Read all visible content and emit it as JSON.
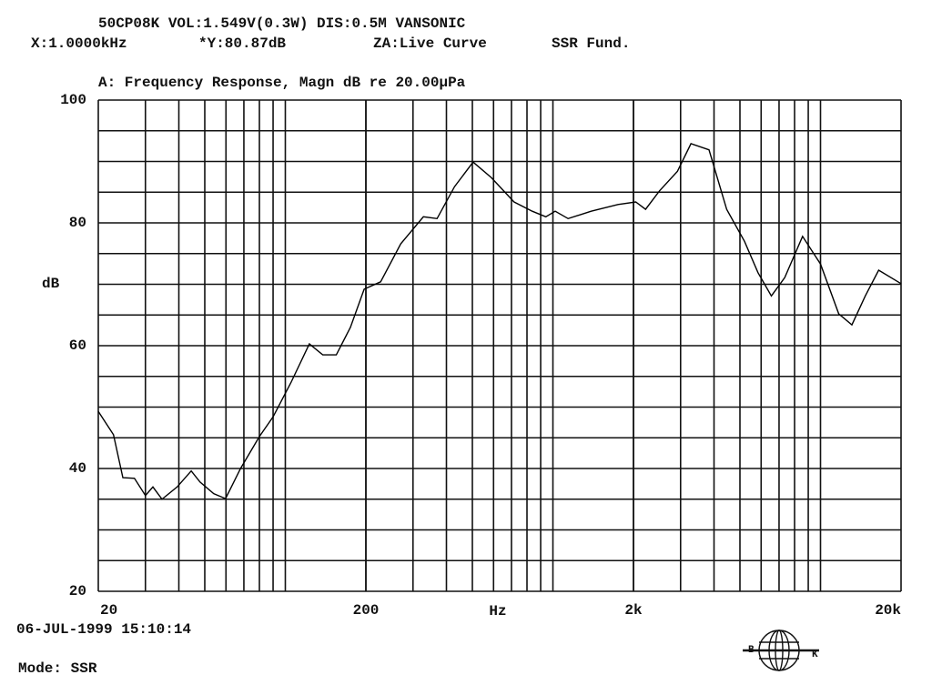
{
  "header": {
    "line1": "50CP08K VOL:1.549V(0.3W) DIS:0.5M VANSONIC",
    "cursor_x": "X:1.0000kHz",
    "cursor_y": "*Y:80.87dB",
    "za": "ZA:Live Curve",
    "mode_tag": "SSR Fund."
  },
  "chart_data": {
    "type": "line",
    "title": "A: Frequency Response, Magn dB re 20.00µPa",
    "y_label": "dB",
    "x_label": "Hz",
    "x": [
      20,
      22.8,
      24.7,
      27.3,
      30,
      32,
      34.6,
      39.4,
      44.5,
      48,
      54,
      59.8,
      68,
      80,
      90,
      105,
      123,
      138,
      155,
      175,
      197,
      227,
      270,
      328,
      369,
      429,
      503,
      588,
      716,
      837,
      941,
      1020,
      1140,
      1390,
      1750,
      2040,
      2220,
      2500,
      2920,
      3280,
      3830,
      4460,
      5200,
      5840,
      6550,
      7350,
      8570,
      10000,
      11700,
      13100,
      14700,
      16500,
      20000
    ],
    "series": [
      {
        "color": "#000000",
        "values": [
          49.3,
          45.5,
          38.5,
          38.4,
          35.6,
          37,
          35,
          37,
          39.6,
          37.8,
          35.9,
          35.1,
          40,
          45.2,
          48.4,
          54,
          60.3,
          58.5,
          58.5,
          63,
          69.2,
          70.4,
          76.6,
          81,
          80.7,
          85.9,
          89.9,
          87.4,
          83.4,
          81.9,
          81,
          81.9,
          80.7,
          81.9,
          83,
          83.4,
          82.2,
          85.2,
          88.4,
          92.9,
          91.9,
          82.2,
          77,
          71.9,
          68.1,
          71.1,
          77.8,
          73.3,
          65.2,
          63.4,
          68.1,
          72.3,
          70.1
        ]
      }
    ],
    "xlog": true,
    "xlim": [
      20,
      20000
    ],
    "xticks": [
      20,
      200,
      {
        "value": 2000,
        "label": "2k"
      },
      {
        "value": 20000,
        "label": "20k"
      }
    ],
    "ylim": [
      20,
      100
    ],
    "yticks": [
      20,
      40,
      60,
      80,
      100
    ],
    "grid": true,
    "y_grid_subdivisions": 4
  },
  "footer": {
    "datetime": "06-JUL-1999 15:10:14",
    "mode": "Mode: SSR",
    "logo_left": "B",
    "logo_right": "K"
  }
}
